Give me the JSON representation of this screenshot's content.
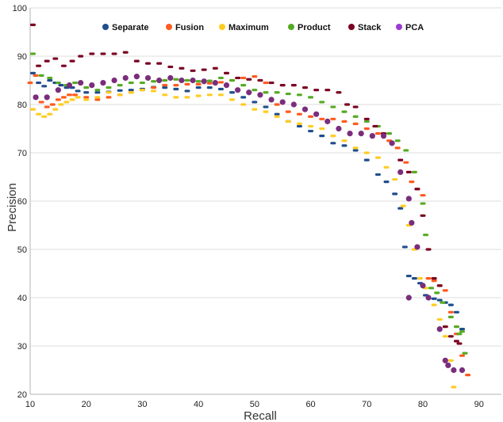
{
  "chart_data": {
    "type": "scatter",
    "title": "",
    "xlabel": "Recall",
    "ylabel": "Precision",
    "xlim": [
      10,
      94
    ],
    "ylim": [
      20,
      100
    ],
    "xticks": [
      10,
      20,
      30,
      40,
      50,
      60,
      70,
      80,
      90
    ],
    "yticks": [
      20,
      30,
      40,
      50,
      60,
      70,
      80,
      90,
      100
    ],
    "grid": "horizontal",
    "legend": "top",
    "series": [
      {
        "name": "Separate",
        "color": "#1f4e8c",
        "points": [
          [
            10.5,
            86.5
          ],
          [
            11.5,
            84.5
          ],
          [
            12.5,
            83.8
          ],
          [
            13.5,
            85
          ],
          [
            14.5,
            84.5
          ],
          [
            15.5,
            84
          ],
          [
            16.5,
            83.5
          ],
          [
            17.5,
            83.5
          ],
          [
            18.5,
            82.8
          ],
          [
            20,
            82.5
          ],
          [
            22,
            82.5
          ],
          [
            24,
            82.6
          ],
          [
            26,
            82.9
          ],
          [
            28,
            83
          ],
          [
            30,
            83.2
          ],
          [
            32,
            83.6
          ],
          [
            34,
            83.5
          ],
          [
            36,
            83.2
          ],
          [
            38,
            82.8
          ],
          [
            40,
            83.5
          ],
          [
            42,
            83.5
          ],
          [
            44,
            83.2
          ],
          [
            46,
            82.5
          ],
          [
            48,
            81.5
          ],
          [
            50,
            80.5
          ],
          [
            52,
            79.5
          ],
          [
            54,
            78
          ],
          [
            56,
            76.5
          ],
          [
            58,
            75.5
          ],
          [
            60,
            74.5
          ],
          [
            62,
            73.5
          ],
          [
            64,
            72
          ],
          [
            66,
            71.5
          ],
          [
            68,
            70.5
          ],
          [
            70,
            68.5
          ],
          [
            72,
            65.5
          ],
          [
            73.5,
            64
          ],
          [
            75,
            61.5
          ],
          [
            76,
            58.5
          ],
          [
            76.8,
            50.5
          ],
          [
            77.5,
            44.5
          ],
          [
            78.5,
            44
          ],
          [
            79.5,
            43
          ],
          [
            80.5,
            40.5
          ],
          [
            82,
            39.8
          ],
          [
            83,
            39.5
          ],
          [
            84,
            39
          ],
          [
            85,
            38.5
          ],
          [
            86,
            37
          ],
          [
            87,
            33.5
          ]
        ]
      },
      {
        "name": "Fusion",
        "color": "#ff5a1f",
        "points": [
          [
            10,
            84.5
          ],
          [
            11,
            86
          ],
          [
            12,
            80.5
          ],
          [
            13,
            79.5
          ],
          [
            14,
            80
          ],
          [
            15,
            81
          ],
          [
            16,
            81.5
          ],
          [
            17,
            82
          ],
          [
            18,
            82
          ],
          [
            20,
            81.5
          ],
          [
            22,
            81
          ],
          [
            24,
            81.5
          ],
          [
            26,
            82
          ],
          [
            28,
            82.5
          ],
          [
            30,
            83
          ],
          [
            32,
            83.5
          ],
          [
            34,
            84
          ],
          [
            36,
            84
          ],
          [
            38,
            84.2
          ],
          [
            40,
            84.2
          ],
          [
            42,
            84.4
          ],
          [
            44,
            84.6
          ],
          [
            46,
            85
          ],
          [
            48,
            85.5
          ],
          [
            50,
            85.8
          ],
          [
            52,
            84.5
          ],
          [
            54,
            80
          ],
          [
            56,
            78.5
          ],
          [
            58,
            78
          ],
          [
            60,
            77.5
          ],
          [
            62,
            77
          ],
          [
            64,
            77
          ],
          [
            66,
            76.5
          ],
          [
            68,
            76
          ],
          [
            70,
            75
          ],
          [
            72,
            74
          ],
          [
            74,
            72.5
          ],
          [
            75.5,
            71
          ],
          [
            77,
            68
          ],
          [
            78,
            64
          ],
          [
            79,
            62.5
          ],
          [
            80,
            61.2
          ],
          [
            81,
            44
          ],
          [
            82,
            43.5
          ],
          [
            83,
            42.5
          ],
          [
            84,
            41.5
          ],
          [
            85,
            37
          ],
          [
            86,
            32.5
          ],
          [
            87,
            28
          ],
          [
            88,
            24
          ]
        ]
      },
      {
        "name": "Maximum",
        "color": "#ffcc22",
        "points": [
          [
            10.5,
            79
          ],
          [
            11.5,
            78
          ],
          [
            12.5,
            77.5
          ],
          [
            13.5,
            78
          ],
          [
            14.5,
            79
          ],
          [
            15.5,
            80
          ],
          [
            16.5,
            80.5
          ],
          [
            17.5,
            81
          ],
          [
            18.5,
            81.5
          ],
          [
            20,
            81
          ],
          [
            22,
            81.5
          ],
          [
            24,
            82.5
          ],
          [
            26,
            82
          ],
          [
            28,
            82.5
          ],
          [
            30,
            83
          ],
          [
            32,
            82.8
          ],
          [
            34,
            82
          ],
          [
            36,
            81.5
          ],
          [
            38,
            81.5
          ],
          [
            40,
            81.8
          ],
          [
            42,
            82
          ],
          [
            44,
            82
          ],
          [
            46,
            81
          ],
          [
            48,
            80
          ],
          [
            50,
            79
          ],
          [
            52,
            78.5
          ],
          [
            54,
            77.5
          ],
          [
            56,
            76.5
          ],
          [
            58,
            76
          ],
          [
            60,
            75.5
          ],
          [
            62,
            75
          ],
          [
            64,
            73.5
          ],
          [
            66,
            72.5
          ],
          [
            68,
            71
          ],
          [
            70,
            70
          ],
          [
            72,
            69
          ],
          [
            73.5,
            67
          ],
          [
            75,
            64.5
          ],
          [
            76.5,
            59
          ],
          [
            77.5,
            55
          ],
          [
            78.5,
            50
          ],
          [
            79.5,
            44
          ],
          [
            80.5,
            42
          ],
          [
            82,
            38.5
          ],
          [
            83,
            35.5
          ],
          [
            84,
            32
          ],
          [
            85,
            27
          ],
          [
            85.5,
            21.5
          ]
        ]
      },
      {
        "name": "Product",
        "color": "#55aa22",
        "points": [
          [
            10.5,
            90.5
          ],
          [
            12,
            86
          ],
          [
            13.5,
            85.5
          ],
          [
            15,
            84.5
          ],
          [
            16.5,
            84
          ],
          [
            18,
            84.5
          ],
          [
            20,
            83.5
          ],
          [
            22,
            83
          ],
          [
            24,
            83.5
          ],
          [
            26,
            84
          ],
          [
            28,
            84.5
          ],
          [
            30,
            84.5
          ],
          [
            32,
            84.8
          ],
          [
            34,
            85
          ],
          [
            36,
            85.2
          ],
          [
            38,
            85
          ],
          [
            40,
            84.8
          ],
          [
            42,
            84.9
          ],
          [
            44,
            85.5
          ],
          [
            46,
            85
          ],
          [
            48,
            84
          ],
          [
            50,
            83
          ],
          [
            52,
            82.5
          ],
          [
            54,
            82.5
          ],
          [
            56,
            82.2
          ],
          [
            58,
            82
          ],
          [
            60,
            81.5
          ],
          [
            62,
            80.5
          ],
          [
            64,
            79.5
          ],
          [
            66,
            78.5
          ],
          [
            68,
            77.5
          ],
          [
            70,
            76.5
          ],
          [
            72,
            75.5
          ],
          [
            74,
            74
          ],
          [
            75.5,
            72.5
          ],
          [
            77,
            70.5
          ],
          [
            78.5,
            66
          ],
          [
            80,
            59.5
          ],
          [
            80.5,
            53
          ],
          [
            81.5,
            42
          ],
          [
            82.5,
            41
          ],
          [
            83.5,
            39
          ],
          [
            85,
            36
          ],
          [
            86,
            34
          ],
          [
            86.5,
            32.5
          ],
          [
            87,
            33
          ],
          [
            87.5,
            28.5
          ]
        ]
      },
      {
        "name": "Stack",
        "color": "#7a0020",
        "points": [
          [
            10.5,
            96.5
          ],
          [
            11.5,
            88
          ],
          [
            13,
            89
          ],
          [
            14.5,
            89.5
          ],
          [
            16,
            88
          ],
          [
            17.5,
            89
          ],
          [
            19,
            90
          ],
          [
            21,
            90.5
          ],
          [
            23,
            90.5
          ],
          [
            25,
            90.5
          ],
          [
            27,
            90.8
          ],
          [
            29,
            89
          ],
          [
            31,
            88.5
          ],
          [
            33,
            88.5
          ],
          [
            35,
            87.8
          ],
          [
            37,
            87.5
          ],
          [
            39,
            87
          ],
          [
            41,
            87.2
          ],
          [
            43,
            87.5
          ],
          [
            45,
            86.5
          ],
          [
            47,
            85.5
          ],
          [
            49,
            85.2
          ],
          [
            51,
            85
          ],
          [
            53,
            84.5
          ],
          [
            55,
            84
          ],
          [
            57,
            84
          ],
          [
            59,
            83.5
          ],
          [
            61,
            83
          ],
          [
            63,
            83
          ],
          [
            65,
            82.5
          ],
          [
            66.5,
            80
          ],
          [
            68,
            79.5
          ],
          [
            70,
            77
          ],
          [
            71.5,
            75.5
          ],
          [
            73,
            74
          ],
          [
            74.5,
            72
          ],
          [
            76,
            68.5
          ],
          [
            77.5,
            66
          ],
          [
            79,
            62.5
          ],
          [
            80,
            57
          ],
          [
            81,
            50
          ],
          [
            82,
            44
          ],
          [
            83,
            42.5
          ],
          [
            84,
            34
          ],
          [
            85,
            32
          ],
          [
            86,
            31
          ],
          [
            86.5,
            30.5
          ]
        ]
      },
      {
        "name": "PCA",
        "color": "#9a3ad6",
        "pointColor": "#7a2d7c",
        "points": [
          [
            11,
            81.5
          ],
          [
            13,
            81.5
          ],
          [
            15,
            83
          ],
          [
            17,
            84
          ],
          [
            19,
            84.5
          ],
          [
            21,
            84
          ],
          [
            23,
            84.5
          ],
          [
            25,
            85
          ],
          [
            27,
            85.5
          ],
          [
            29,
            85.8
          ],
          [
            31,
            85.5
          ],
          [
            33,
            85
          ],
          [
            35,
            85.5
          ],
          [
            37,
            85
          ],
          [
            39,
            85
          ],
          [
            41,
            84.8
          ],
          [
            43,
            84.5
          ],
          [
            45,
            84
          ],
          [
            47,
            83
          ],
          [
            49,
            82.5
          ],
          [
            51,
            82
          ],
          [
            53,
            81
          ],
          [
            55,
            80.5
          ],
          [
            57,
            80
          ],
          [
            59,
            79
          ],
          [
            61,
            78
          ],
          [
            63,
            76.5
          ],
          [
            65,
            75
          ],
          [
            67,
            74
          ],
          [
            69,
            74
          ],
          [
            71,
            73.5
          ],
          [
            73,
            73.5
          ],
          [
            74.5,
            72
          ],
          [
            76,
            66
          ],
          [
            77.5,
            60.5
          ],
          [
            78,
            55.5
          ],
          [
            79,
            50.5
          ],
          [
            80,
            42.5
          ],
          [
            77.5,
            40
          ],
          [
            81,
            40
          ],
          [
            83,
            33.5
          ],
          [
            84,
            27
          ],
          [
            84.5,
            26
          ],
          [
            85.5,
            25
          ],
          [
            87,
            25
          ]
        ]
      }
    ]
  }
}
